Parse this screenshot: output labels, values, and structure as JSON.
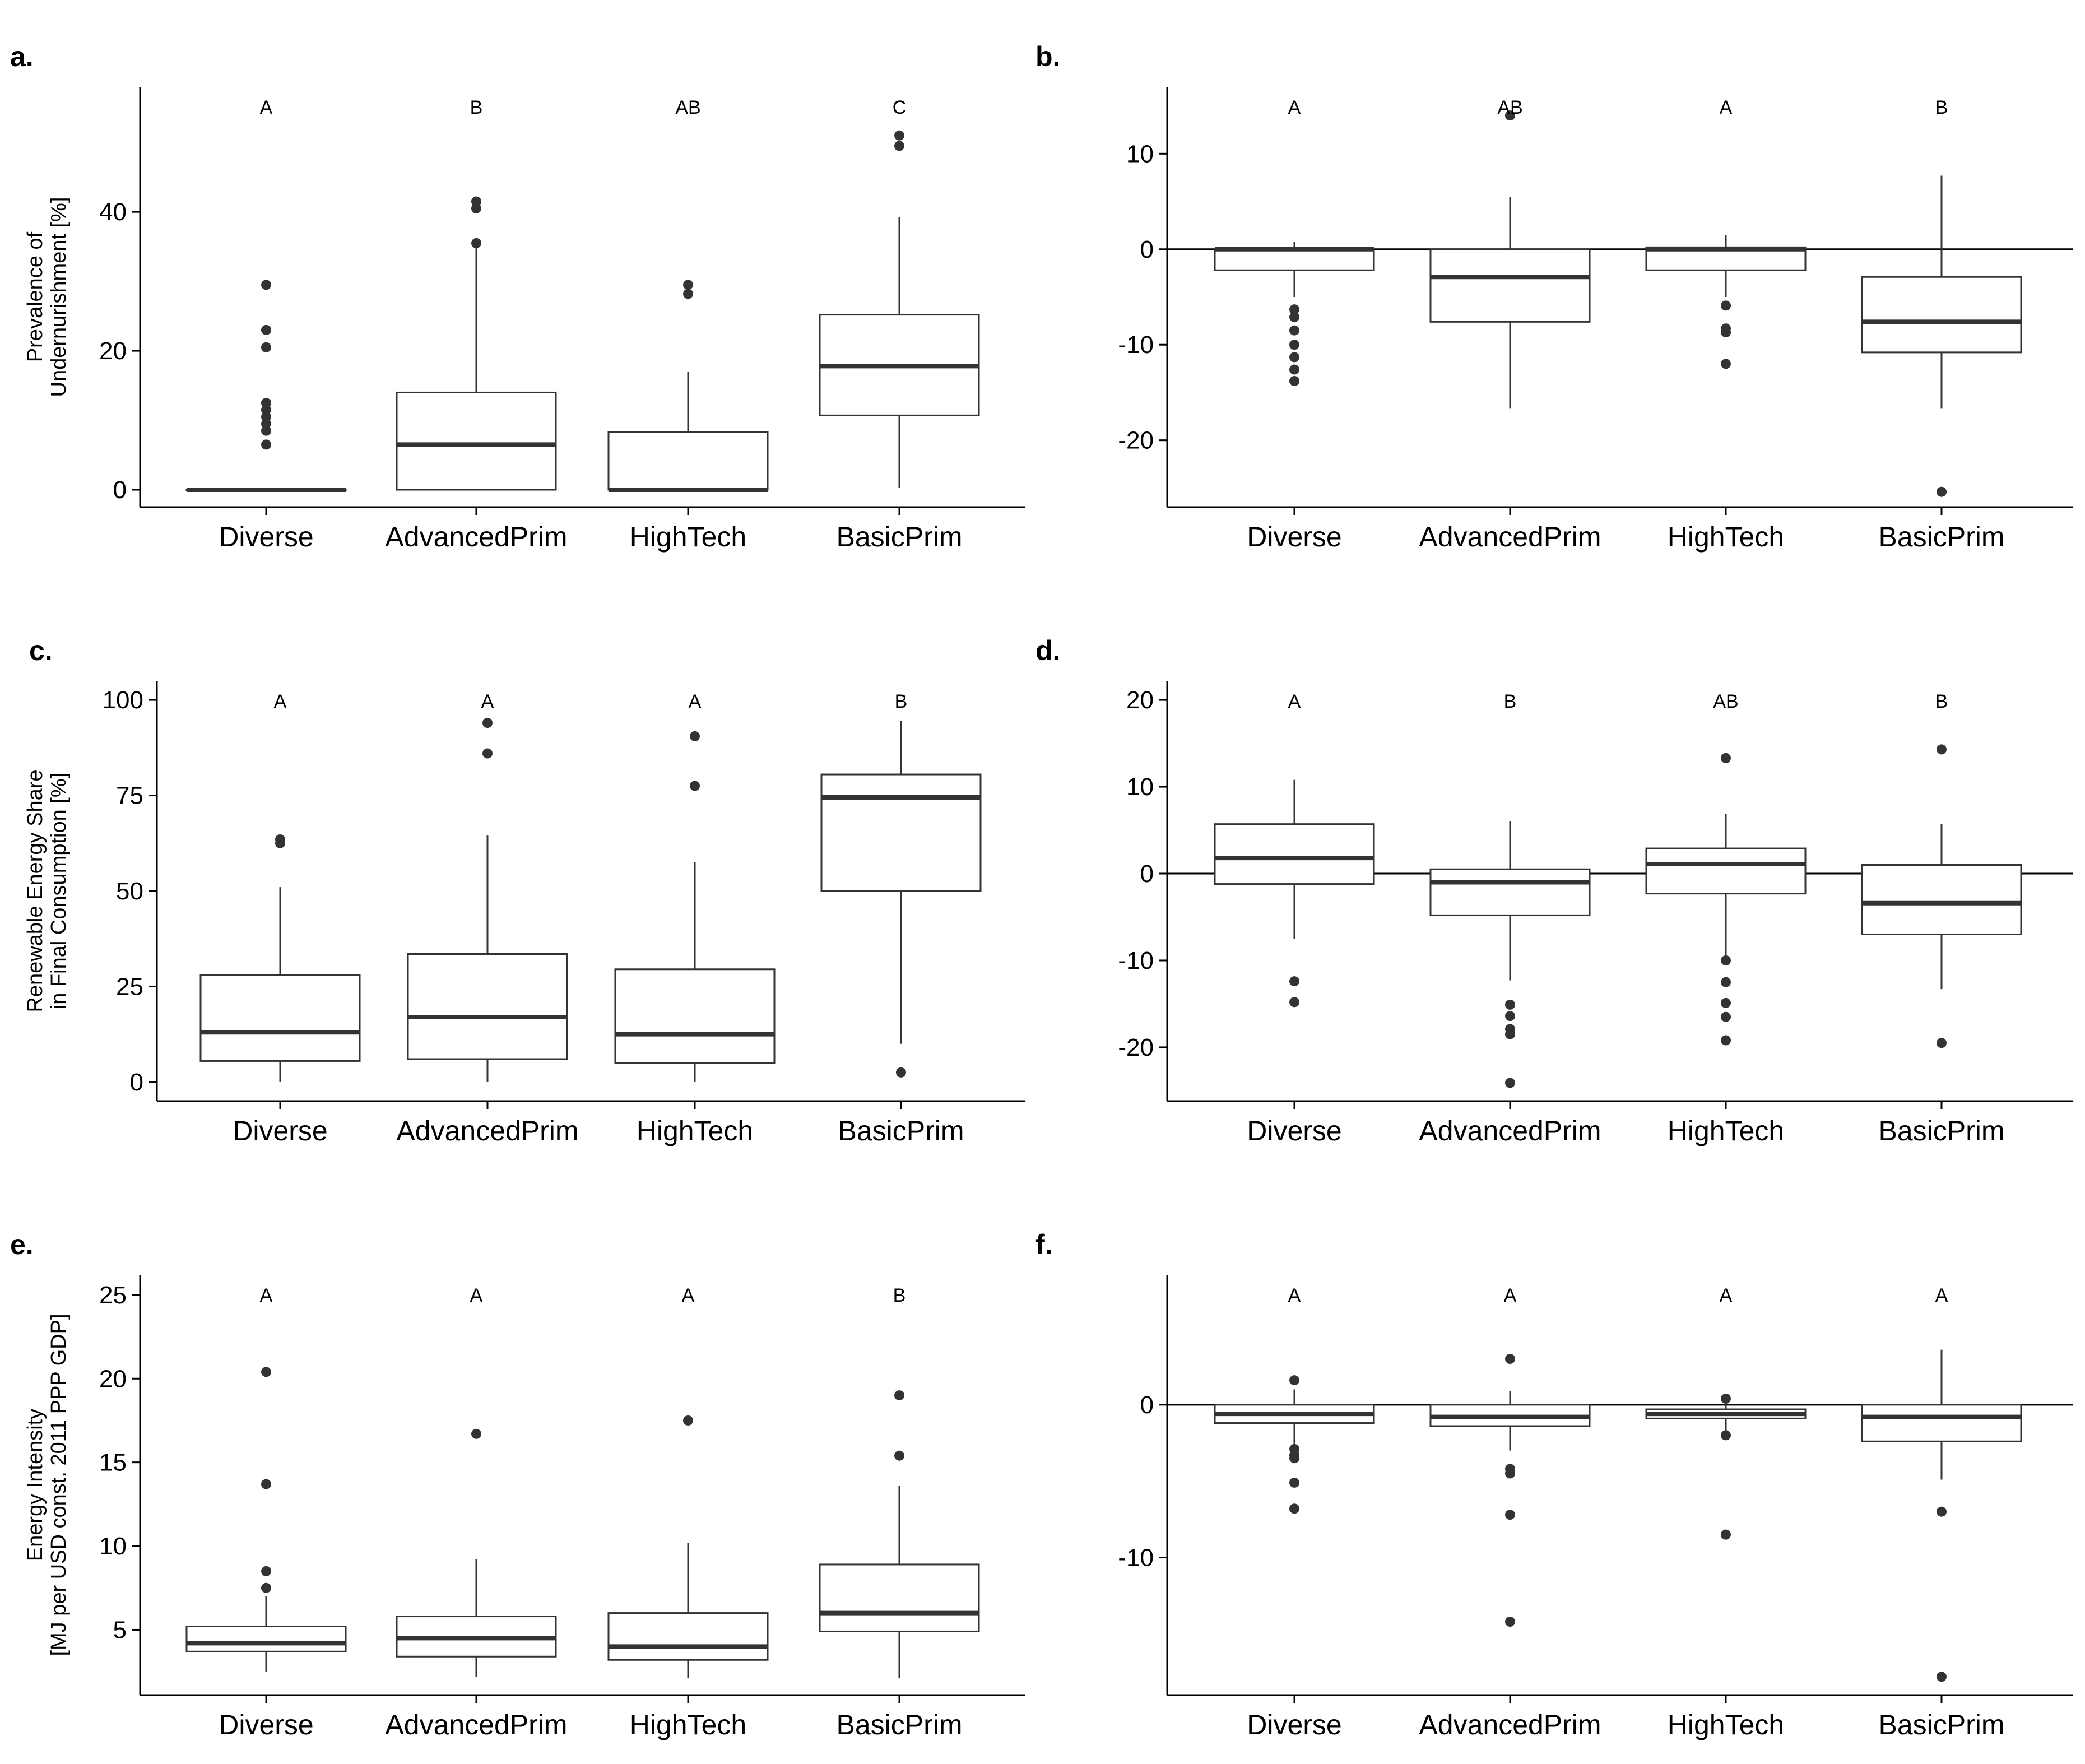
{
  "chart_data": [
    {
      "id": "a",
      "label": "a.",
      "type": "box",
      "ylabel_lines": [
        "Prevalence of",
        "Undernurishment [%]"
      ],
      "categories": [
        "Diverse",
        "AdvancedPrim",
        "HighTech",
        "BasicPrim"
      ],
      "ylim": [
        -2.5,
        58
      ],
      "yticks": [
        0,
        20,
        40
      ],
      "zero_line": false,
      "significance": [
        "A",
        "B",
        "AB",
        "C"
      ],
      "boxes": [
        {
          "q1": 0,
          "median": 0,
          "q3": 0,
          "wlow": 0,
          "whigh": 0,
          "outliers": [
            6.5,
            8.5,
            9.5,
            10.5,
            11.5,
            12.5,
            20.5,
            23,
            29.5
          ]
        },
        {
          "q1": 0,
          "median": 6.5,
          "q3": 14,
          "wlow": 0,
          "whigh": 35,
          "outliers": [
            35.5,
            40.5,
            41.5
          ]
        },
        {
          "q1": 0,
          "median": 0,
          "q3": 8.3,
          "wlow": 0,
          "whigh": 17,
          "outliers": [
            28.2,
            29.5
          ]
        },
        {
          "q1": 10.7,
          "median": 17.8,
          "q3": 25.2,
          "wlow": 0.3,
          "whigh": 39.2,
          "outliers": [
            49.5,
            51
          ]
        }
      ]
    },
    {
      "id": "b",
      "label": "b.",
      "type": "box",
      "ylabel_lines": [],
      "categories": [
        "Diverse",
        "AdvancedPrim",
        "HighTech",
        "BasicPrim"
      ],
      "ylim": [
        -27,
        17
      ],
      "yticks": [
        -20,
        -10,
        0,
        10
      ],
      "zero_line": true,
      "significance": [
        "A",
        "AB",
        "A",
        "B"
      ],
      "boxes": [
        {
          "q1": -2.2,
          "median": 0,
          "q3": 0,
          "wlow": -5,
          "whigh": 0.8,
          "outliers": [
            -6.3,
            -7.1,
            -8.5,
            -10,
            -11.3,
            -12.6,
            -13.8
          ]
        },
        {
          "q1": -7.6,
          "median": -2.9,
          "q3": 0,
          "wlow": -16.7,
          "whigh": 5.5,
          "outliers": [
            14
          ]
        },
        {
          "q1": -2.2,
          "median": 0,
          "q3": 0.2,
          "wlow": -5,
          "whigh": 1.5,
          "outliers": [
            -5.9,
            -8.3,
            -8.7,
            -12
          ]
        },
        {
          "q1": -10.8,
          "median": -7.6,
          "q3": -2.9,
          "wlow": -16.7,
          "whigh": 7.7,
          "outliers": [
            -25.4
          ]
        }
      ]
    },
    {
      "id": "c",
      "label": "c.",
      "type": "box",
      "ylabel_lines": [
        "Renewable Energy Share",
        "in Final Consumption [%]"
      ],
      "categories": [
        "Diverse",
        "AdvancedPrim",
        "HighTech",
        "BasicPrim"
      ],
      "ylim": [
        -5,
        105
      ],
      "yticks": [
        0,
        25,
        50,
        75,
        100
      ],
      "zero_line": false,
      "significance": [
        "A",
        "A",
        "A",
        "B"
      ],
      "boxes": [
        {
          "q1": 5.5,
          "median": 13,
          "q3": 28,
          "wlow": 0,
          "whigh": 51,
          "outliers": [
            62.5,
            63.5
          ]
        },
        {
          "q1": 6,
          "median": 17,
          "q3": 33.5,
          "wlow": 0,
          "whigh": 64.5,
          "outliers": [
            86,
            94
          ]
        },
        {
          "q1": 5,
          "median": 12.5,
          "q3": 29.5,
          "wlow": 0,
          "whigh": 57.5,
          "outliers": [
            77.5,
            90.5
          ]
        },
        {
          "q1": 50,
          "median": 74.5,
          "q3": 80.5,
          "wlow": 10,
          "whigh": 94.5,
          "outliers": [
            2.5
          ]
        }
      ]
    },
    {
      "id": "d",
      "label": "d.",
      "type": "box",
      "ylabel_lines": [],
      "categories": [
        "Diverse",
        "AdvancedPrim",
        "HighTech",
        "BasicPrim"
      ],
      "ylim": [
        -26.2,
        22.2
      ],
      "yticks": [
        -20,
        -10,
        0,
        10,
        20
      ],
      "zero_line": true,
      "significance": [
        "A",
        "B",
        "AB",
        "B"
      ],
      "boxes": [
        {
          "q1": -1.2,
          "median": 1.8,
          "q3": 5.7,
          "wlow": -7.5,
          "whigh": 10.8,
          "outliers": [
            -12.4,
            -14.8
          ]
        },
        {
          "q1": -4.8,
          "median": -1,
          "q3": 0.5,
          "wlow": -12.3,
          "whigh": 6,
          "outliers": [
            -15.1,
            -16.4,
            -17.9,
            -18.5,
            -24.1
          ]
        },
        {
          "q1": -2.3,
          "median": 1.1,
          "q3": 2.9,
          "wlow": -9.5,
          "whigh": 6.9,
          "outliers": [
            -10,
            -12.5,
            -14.9,
            -16.5,
            -19.2,
            13.3
          ]
        },
        {
          "q1": -7,
          "median": -3.4,
          "q3": 1,
          "wlow": -13.3,
          "whigh": 5.7,
          "outliers": [
            -19.5,
            14.3
          ]
        }
      ]
    },
    {
      "id": "e",
      "label": "e.",
      "type": "box",
      "ylabel_lines": [
        "Energy Intensity",
        "[MJ per USD const. 2011 PPP GDP]"
      ],
      "categories": [
        "Diverse",
        "AdvancedPrim",
        "HighTech",
        "BasicPrim"
      ],
      "ylim": [
        1.1,
        26.2
      ],
      "yticks": [
        5,
        10,
        15,
        20,
        25
      ],
      "zero_line": false,
      "significance": [
        "A",
        "A",
        "A",
        "B"
      ],
      "boxes": [
        {
          "q1": 3.7,
          "median": 4.2,
          "q3": 5.2,
          "wlow": 2.5,
          "whigh": 7,
          "outliers": [
            7.5,
            8.5,
            13.7,
            20.4
          ]
        },
        {
          "q1": 3.4,
          "median": 4.5,
          "q3": 5.8,
          "wlow": 2.2,
          "whigh": 9.2,
          "outliers": [
            16.7
          ]
        },
        {
          "q1": 3.2,
          "median": 4,
          "q3": 6,
          "wlow": 2.1,
          "whigh": 10.2,
          "outliers": [
            17.5
          ]
        },
        {
          "q1": 4.9,
          "median": 6,
          "q3": 8.9,
          "wlow": 2.1,
          "whigh": 13.6,
          "outliers": [
            15.4,
            19
          ]
        }
      ]
    },
    {
      "id": "f",
      "label": "f.",
      "type": "box",
      "ylabel_lines": [],
      "categories": [
        "Diverse",
        "AdvancedPrim",
        "HighTech",
        "BasicPrim"
      ],
      "ylim": [
        -19,
        8.5
      ],
      "yticks": [
        -10,
        0
      ],
      "zero_line": true,
      "significance": [
        "A",
        "A",
        "A",
        "A"
      ],
      "boxes": [
        {
          "q1": -1.2,
          "median": -0.6,
          "q3": 0,
          "wlow": -2.7,
          "whigh": 1,
          "outliers": [
            1.6,
            -2.9,
            -3.3,
            -3.5,
            -5.1,
            -6.8
          ]
        },
        {
          "q1": -1.4,
          "median": -0.8,
          "q3": 0,
          "wlow": -3,
          "whigh": 0.9,
          "outliers": [
            3,
            -4.2,
            -4.5,
            -7.2,
            -14.2
          ]
        },
        {
          "q1": -0.9,
          "median": -0.6,
          "q3": -0.3,
          "wlow": -1.7,
          "whigh": 0.4,
          "outliers": [
            -2,
            -8.5,
            0.4
          ]
        },
        {
          "q1": -2.4,
          "median": -0.8,
          "q3": 0,
          "wlow": -4.9,
          "whigh": 3.6,
          "outliers": [
            -7,
            -17.8
          ]
        }
      ]
    }
  ]
}
